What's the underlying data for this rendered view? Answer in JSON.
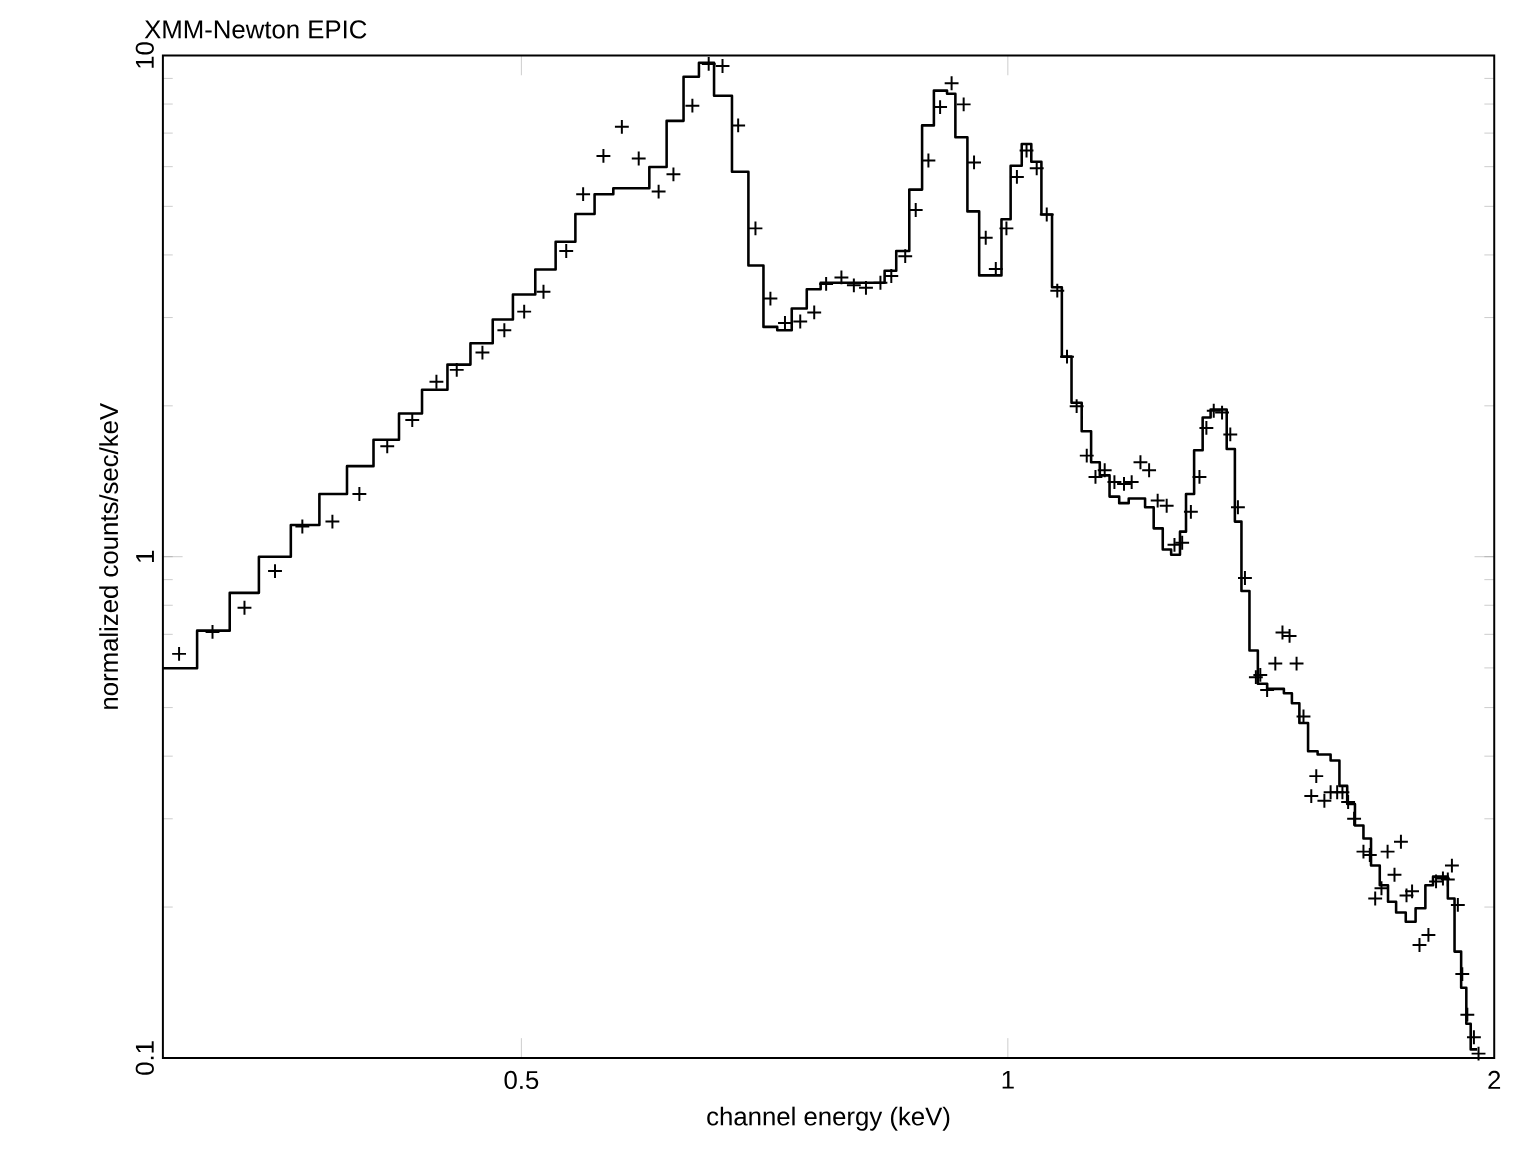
{
  "chart_data": {
    "type": "scatter",
    "title": "XMM-Newton EPIC",
    "xlabel": "channel energy (keV)",
    "ylabel": "normalized counts/sec/keV",
    "log": "xy",
    "xlim": [
      0.3,
      2
    ],
    "ylim": [
      0.1,
      10
    ],
    "xticks": [
      0.5,
      1,
      2
    ],
    "yticks": [
      0.1,
      1,
      10
    ],
    "series": [
      {
        "type": "step",
        "color": "#000000",
        "x": [
          0.3,
          0.315,
          0.33,
          0.344,
          0.36,
          0.375,
          0.39,
          0.405,
          0.42,
          0.434,
          0.45,
          0.465,
          0.48,
          0.494,
          0.51,
          0.525,
          0.54,
          0.555,
          0.57,
          0.6,
          0.615,
          0.63,
          0.644,
          0.658,
          0.675,
          0.691,
          0.706,
          0.72,
          0.735,
          0.751,
          0.766,
          0.839,
          0.853,
          0.869,
          0.885,
          0.9,
          0.917,
          0.928,
          0.944,
          0.96,
          0.991,
          1.004,
          1.02,
          1.034,
          1.049,
          1.065,
          1.08,
          1.095,
          1.111,
          1.126,
          1.14,
          1.156,
          1.172,
          1.188,
          1.216,
          1.231,
          1.247,
          1.262,
          1.278,
          1.289,
          1.304,
          1.32,
          1.335,
          1.366,
          1.382,
          1.395,
          1.411,
          1.428,
          1.447,
          1.482,
          1.499,
          1.515,
          1.534,
          1.555,
          1.584,
          1.604,
          1.622,
          1.64,
          1.66,
          1.678,
          1.699,
          1.719,
          1.739,
          1.763,
          1.788,
          1.813,
          1.833,
          1.872,
          1.89,
          1.908,
          1.922,
          1.934,
          1.952
        ],
        "values": [
          0.599,
          0.712,
          0.847,
          1.0,
          1.157,
          1.334,
          1.516,
          1.711,
          1.931,
          2.154,
          2.417,
          2.666,
          2.973,
          3.334,
          3.742,
          4.251,
          4.829,
          5.288,
          5.435,
          5.992,
          7.406,
          9.07,
          9.67,
          8.31,
          5.861,
          3.811,
          2.874,
          2.83,
          3.128,
          3.417,
          3.521,
          3.719,
          4.073,
          5.4,
          7.253,
          8.51,
          8.39,
          6.869,
          4.886,
          3.641,
          4.711,
          6.025,
          6.659,
          6.136,
          4.816,
          3.448,
          2.507,
          2.028,
          1.779,
          1.543,
          1.453,
          1.318,
          1.279,
          1.306,
          1.255,
          1.139,
          1.034,
          1.009,
          1.122,
          1.334,
          1.631,
          1.896,
          1.966,
          1.64,
          1.175,
          0.854,
          0.65,
          0.558,
          0.545,
          0.534,
          0.51,
          0.466,
          0.409,
          0.403,
          0.392,
          0.349,
          0.321,
          0.291,
          0.274,
          0.242,
          0.221,
          0.205,
          0.195,
          0.187,
          0.199,
          0.221,
          0.23,
          0.208,
          0.163,
          0.138,
          0.117,
          0.104,
          0.104
        ]
      },
      {
        "type": "scatter",
        "color": "#000000",
        "marker": "cross",
        "x": [
          0.307,
          0.322,
          0.337,
          0.352,
          0.366,
          0.382,
          0.397,
          0.413,
          0.428,
          0.443,
          0.456,
          0.473,
          0.488,
          0.502,
          0.516,
          0.533,
          0.546,
          0.562,
          0.577,
          0.591,
          0.608,
          0.621,
          0.638,
          0.653,
          0.666,
          0.681,
          0.698,
          0.713,
          0.728,
          0.744,
          0.759,
          0.772,
          0.789,
          0.803,
          0.817,
          0.834,
          0.847,
          0.864,
          0.877,
          0.893,
          0.908,
          0.923,
          0.939,
          0.953,
          0.969,
          0.983,
          0.998,
          1.013,
          1.027,
          1.042,
          1.057,
          1.073,
          1.088,
          1.103,
          1.119,
          1.133,
          1.148,
          1.164,
          1.18,
          1.193,
          1.208,
          1.223,
          1.238,
          1.254,
          1.268,
          1.282,
          1.298,
          1.314,
          1.327,
          1.341,
          1.357,
          1.373,
          1.388,
          1.402,
          1.424,
          1.433,
          1.447,
          1.464,
          1.479,
          1.494,
          1.509,
          1.524,
          1.541,
          1.552,
          1.57,
          1.584,
          1.599,
          1.611,
          1.624,
          1.638,
          1.66,
          1.675,
          1.688,
          1.703,
          1.718,
          1.735,
          1.751,
          1.765,
          1.779,
          1.798,
          1.821,
          1.841,
          1.859,
          1.872,
          1.883,
          1.899,
          1.911,
          1.925,
          1.943,
          1.956
        ],
        "values": [
          0.64,
          0.708,
          0.791,
          0.936,
          1.149,
          1.175,
          1.334,
          1.661,
          1.874,
          2.234,
          2.359,
          2.554,
          2.83,
          3.083,
          3.377,
          4.073,
          5.288,
          6.305,
          7.206,
          6.231,
          5.351,
          5.792,
          7.943,
          9.62,
          9.53,
          7.253,
          4.519,
          3.273,
          2.927,
          2.946,
          3.072,
          3.502,
          3.608,
          3.479,
          3.439,
          3.521,
          3.631,
          3.978,
          4.918,
          6.173,
          7.89,
          8.8,
          7.99,
          6.118,
          4.329,
          3.752,
          4.519,
          5.724,
          6.461,
          5.954,
          4.816,
          3.395,
          2.507,
          1.997,
          1.591,
          1.443,
          1.488,
          1.409,
          1.397,
          1.409,
          1.543,
          1.488,
          1.294,
          1.264,
          1.056,
          1.066,
          1.229,
          1.443,
          1.807,
          1.956,
          1.939,
          1.754,
          1.255,
          0.907,
          0.575,
          0.581,
          0.542,
          0.612,
          0.706,
          0.695,
          0.612,
          0.48,
          0.333,
          0.365,
          0.326,
          0.339,
          0.339,
          0.339,
          0.324,
          0.3,
          0.258,
          0.254,
          0.208,
          0.218,
          0.258,
          0.232,
          0.27,
          0.211,
          0.215,
          0.168,
          0.176,
          0.225,
          0.228,
          0.227,
          0.242,
          0.202,
          0.147,
          0.122,
          0.11,
          0.102
        ]
      }
    ]
  }
}
